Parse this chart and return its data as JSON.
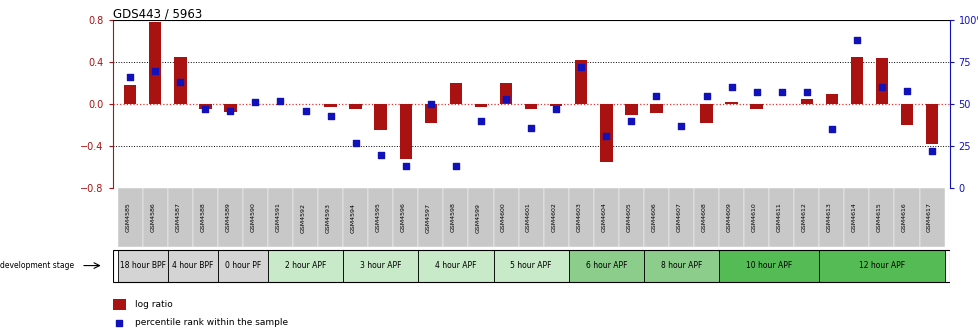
{
  "title": "GDS443 / 5963",
  "samples": [
    "GSM4585",
    "GSM4586",
    "GSM4587",
    "GSM4588",
    "GSM4589",
    "GSM4590",
    "GSM4591",
    "GSM4592",
    "GSM4593",
    "GSM4594",
    "GSM4595",
    "GSM4596",
    "GSM4597",
    "GSM4598",
    "GSM4599",
    "GSM4600",
    "GSM4601",
    "GSM4602",
    "GSM4603",
    "GSM4604",
    "GSM4605",
    "GSM4606",
    "GSM4607",
    "GSM4608",
    "GSM4609",
    "GSM4610",
    "GSM4611",
    "GSM4612",
    "GSM4613",
    "GSM4614",
    "GSM4615",
    "GSM4616",
    "GSM4617"
  ],
  "log_ratio": [
    0.18,
    0.78,
    0.45,
    -0.05,
    -0.07,
    0.0,
    0.0,
    0.0,
    -0.03,
    -0.05,
    -0.25,
    -0.52,
    -0.18,
    0.2,
    -0.03,
    0.2,
    -0.05,
    -0.02,
    0.42,
    -0.55,
    -0.1,
    -0.08,
    0.0,
    -0.18,
    0.02,
    -0.05,
    0.0,
    0.05,
    0.1,
    0.45,
    0.44,
    -0.2,
    -0.38
  ],
  "percentile": [
    66,
    70,
    63,
    47,
    46,
    51,
    52,
    46,
    43,
    27,
    20,
    13,
    50,
    13,
    40,
    53,
    36,
    47,
    72,
    31,
    40,
    55,
    37,
    55,
    60,
    57,
    57,
    57,
    35,
    88,
    60,
    58,
    22
  ],
  "stages": [
    {
      "label": "18 hour BPF",
      "start": 0,
      "end": 2,
      "color": "#d4d4d4"
    },
    {
      "label": "4 hour BPF",
      "start": 2,
      "end": 4,
      "color": "#d4d4d4"
    },
    {
      "label": "0 hour PF",
      "start": 4,
      "end": 6,
      "color": "#d4d4d4"
    },
    {
      "label": "2 hour APF",
      "start": 6,
      "end": 9,
      "color": "#c8eac8"
    },
    {
      "label": "3 hour APF",
      "start": 9,
      "end": 12,
      "color": "#c8eac8"
    },
    {
      "label": "4 hour APF",
      "start": 12,
      "end": 15,
      "color": "#c8eac8"
    },
    {
      "label": "5 hour APF",
      "start": 15,
      "end": 18,
      "color": "#c8eac8"
    },
    {
      "label": "6 hour APF",
      "start": 18,
      "end": 21,
      "color": "#8ccd8c"
    },
    {
      "label": "8 hour APF",
      "start": 21,
      "end": 24,
      "color": "#8ccd8c"
    },
    {
      "label": "10 hour APF",
      "start": 24,
      "end": 28,
      "color": "#55bb55"
    },
    {
      "label": "12 hour APF",
      "start": 28,
      "end": 33,
      "color": "#55bb55"
    }
  ],
  "ylim": [
    -0.8,
    0.8
  ],
  "yticks_left": [
    -0.8,
    -0.4,
    0.0,
    0.4,
    0.8
  ],
  "yticks_right": [
    0,
    25,
    50,
    75,
    100
  ],
  "bar_color": "#aa1111",
  "dot_color": "#1111bb",
  "zero_line_color": "#dd3333",
  "grid_color": "#555555",
  "tick_bg_color": "#c8c8c8",
  "background_color": "#ffffff"
}
